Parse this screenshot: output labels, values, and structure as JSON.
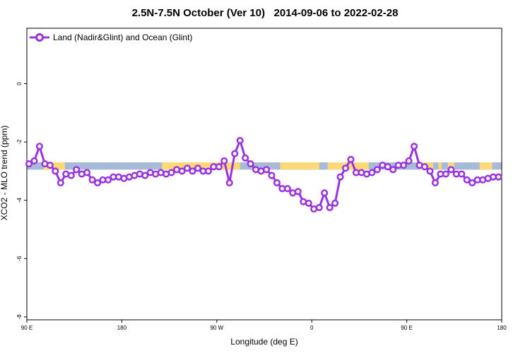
{
  "title": "2.5N-7.5N October (Ver 10)   2014-09-06 to 2022-02-28",
  "chart_data": {
    "type": "line",
    "title": "2.5N-7.5N October (Ver 10)   2014-09-06 to 2022-02-28",
    "xlabel": "Longitude (deg E)",
    "ylabel": "XCO2 - MLO trend (ppm)",
    "x_tick_labels": [
      "90 E",
      "180",
      "90 W",
      "0",
      "90 E",
      "180"
    ],
    "y_ticks": [
      0,
      -2,
      -4,
      -6,
      -8
    ],
    "y_tick_labels": [
      "0",
      "-2",
      "-4",
      "-6",
      "-8"
    ],
    "xlim": [
      90,
      540
    ],
    "ylim": [
      -8.1,
      1.9
    ],
    "grid": false,
    "legend_position": "top-left",
    "band": {
      "ymin": -2.95,
      "ymax": -2.7,
      "land_color": "#fdd878",
      "ocean_color": "#a7bbd8"
    },
    "land_ranges": [
      [
        106,
        126
      ],
      [
        218,
        292
      ],
      [
        330,
        367
      ],
      [
        375,
        414
      ],
      [
        463,
        475
      ],
      [
        480,
        483
      ],
      [
        489,
        495
      ],
      [
        519,
        531
      ]
    ],
    "series": [
      {
        "name": "Land (Nadir&Glint) and Ocean (Glint)",
        "color": "#9932e0",
        "x": [
          92,
          97,
          102,
          107,
          112,
          117,
          122,
          127,
          132,
          137,
          142,
          147,
          152,
          157,
          162,
          167,
          172,
          177,
          182,
          187,
          192,
          197,
          202,
          207,
          212,
          217,
          222,
          227,
          232,
          237,
          242,
          247,
          252,
          257,
          262,
          267,
          272,
          277,
          282,
          287,
          292,
          297,
          302,
          307,
          312,
          317,
          322,
          327,
          332,
          337,
          342,
          347,
          352,
          357,
          362,
          367,
          372,
          377,
          382,
          387,
          392,
          397,
          402,
          407,
          412,
          417,
          422,
          427,
          432,
          437,
          442,
          447,
          452,
          457,
          462,
          467,
          472,
          477,
          482,
          487,
          492,
          497,
          502,
          507,
          512,
          517,
          522,
          527,
          532,
          537
        ],
        "y": [
          -2.75,
          -2.65,
          -2.15,
          -2.75,
          -2.8,
          -3.0,
          -3.4,
          -3.1,
          -3.15,
          -2.95,
          -3.1,
          -3.05,
          -3.3,
          -3.4,
          -3.3,
          -3.3,
          -3.2,
          -3.2,
          -3.25,
          -3.2,
          -3.15,
          -3.1,
          -3.15,
          -3.05,
          -3.1,
          -3.05,
          -3.1,
          -3.05,
          -2.95,
          -3.0,
          -2.9,
          -3.0,
          -2.9,
          -3.0,
          -3.0,
          -2.85,
          -2.85,
          -2.65,
          -3.4,
          -2.4,
          -1.95,
          -2.55,
          -2.75,
          -2.95,
          -3.0,
          -2.95,
          -3.15,
          -3.4,
          -3.6,
          -3.6,
          -3.75,
          -3.7,
          -4.05,
          -4.1,
          -4.3,
          -4.25,
          -3.75,
          -4.25,
          -4.1,
          -3.2,
          -2.9,
          -2.6,
          -3.05,
          -3.05,
          -3.1,
          -3.05,
          -2.95,
          -2.8,
          -2.85,
          -2.95,
          -2.8,
          -2.8,
          -2.65,
          -2.15,
          -2.8,
          -2.85,
          -3.0,
          -3.4,
          -3.1,
          -3.1,
          -2.95,
          -3.1,
          -3.1,
          -3.3,
          -3.4,
          -3.3,
          -3.3,
          -3.25,
          -3.2,
          -3.2
        ]
      }
    ]
  }
}
